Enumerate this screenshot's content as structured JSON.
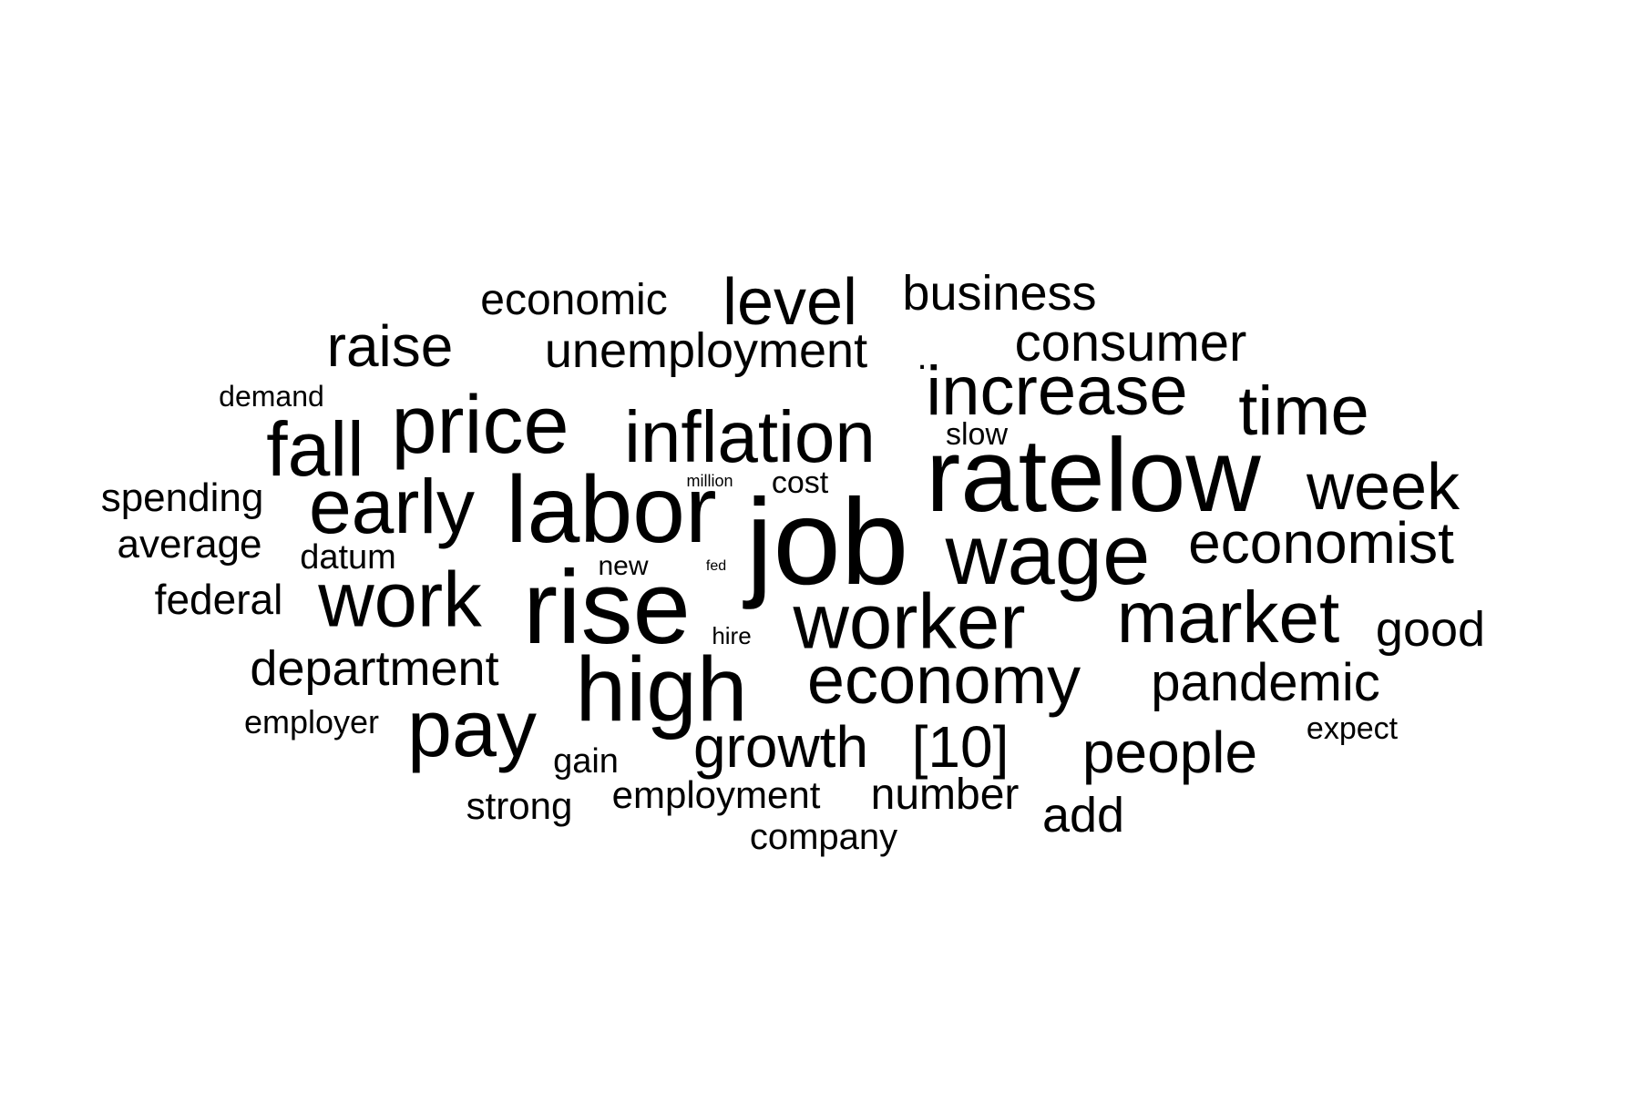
{
  "words": [
    {
      "text": "job",
      "weight": 134
    },
    {
      "text": "ratelow",
      "weight": 114
    },
    {
      "text": "rise",
      "weight": 114
    },
    {
      "text": "labor",
      "weight": 104
    },
    {
      "text": "high",
      "weight": 100
    },
    {
      "text": "wage",
      "weight": 94
    },
    {
      "text": "price",
      "weight": 90
    },
    {
      "text": "pay",
      "weight": 88
    },
    {
      "text": "worker",
      "weight": 85
    },
    {
      "text": "work",
      "weight": 85
    },
    {
      "text": "fall",
      "weight": 84
    },
    {
      "text": "early",
      "weight": 84
    },
    {
      "text": "inflation",
      "weight": 80
    },
    {
      "text": "market",
      "weight": 80
    },
    {
      "text": "increase",
      "weight": 76
    },
    {
      "text": "time",
      "weight": 76
    },
    {
      "text": "economy",
      "weight": 74
    },
    {
      "text": "week",
      "weight": 72
    },
    {
      "text": "level",
      "weight": 72
    },
    {
      "text": "economist",
      "weight": 64
    },
    {
      "text": "growth",
      "weight": 64
    },
    {
      "text": "[10]",
      "weight": 64
    },
    {
      "text": "raise",
      "weight": 64
    },
    {
      "text": "people",
      "weight": 64
    },
    {
      "text": "consumer",
      "weight": 58
    },
    {
      "text": "pandemic",
      "weight": 58
    },
    {
      "text": "department",
      "weight": 54
    },
    {
      "text": "unemployment",
      "weight": 54
    },
    {
      "text": "business",
      "weight": 54
    },
    {
      "text": "good",
      "weight": 54
    },
    {
      "text": "add",
      "weight": 54
    },
    {
      "text": "number",
      "weight": 48
    },
    {
      "text": "economic",
      "weight": 48
    },
    {
      "text": "federal",
      "weight": 46
    },
    {
      "text": "spending",
      "weight": 44
    },
    {
      "text": "average",
      "weight": 44
    },
    {
      "text": "employment",
      "weight": 42
    },
    {
      "text": "strong",
      "weight": 42
    },
    {
      "text": "company",
      "weight": 40
    },
    {
      "text": "gain",
      "weight": 38
    },
    {
      "text": "datum",
      "weight": 38
    },
    {
      "text": "employer",
      "weight": 36
    },
    {
      "text": "slow",
      "weight": 34
    },
    {
      "text": "cost",
      "weight": 34
    },
    {
      "text": "expect",
      "weight": 34
    },
    {
      "text": "demand",
      "weight": 32
    },
    {
      "text": "new",
      "weight": 30
    },
    {
      "text": "hire",
      "weight": 26
    },
    {
      "text": "million",
      "weight": 18
    },
    {
      "text": "fed",
      "weight": 16
    },
    {
      "text": ".",
      "weight": 40
    }
  ]
}
